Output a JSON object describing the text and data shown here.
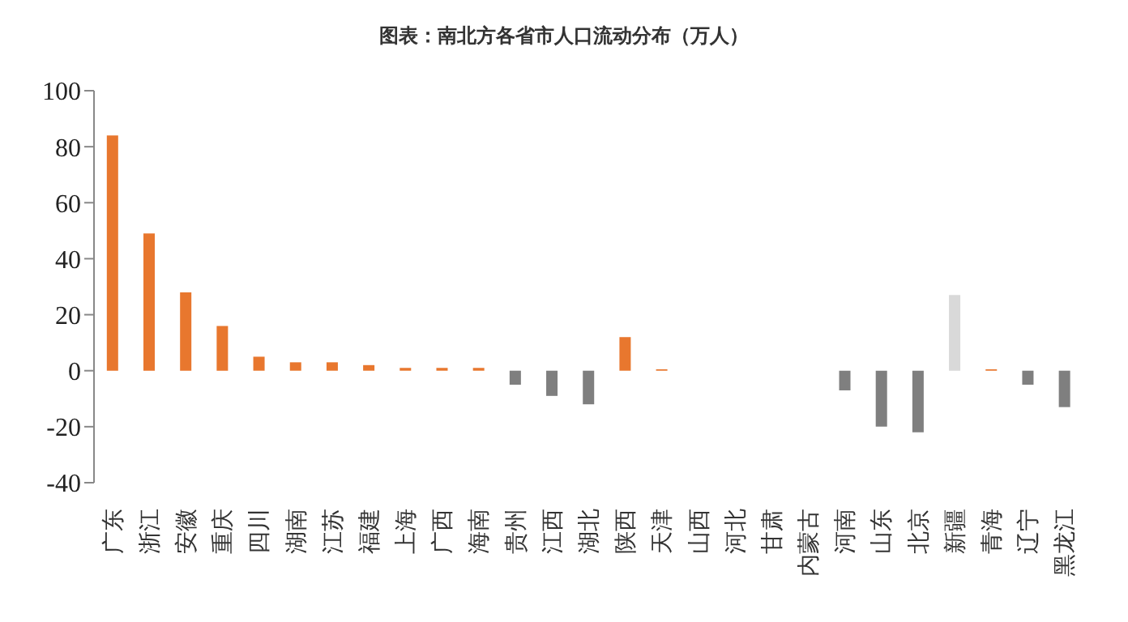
{
  "chart_data": {
    "type": "bar",
    "title": "图表：南北方各省市人口流动分布（万人）",
    "categories": [
      "广东",
      "浙江",
      "安徽",
      "重庆",
      "四川",
      "湖南",
      "江苏",
      "福建",
      "上海",
      "广西",
      "海南",
      "贵州",
      "江西",
      "湖北",
      "陕西",
      "天津",
      "山西",
      "河北",
      "甘肃",
      "内蒙古",
      "河南",
      "山东",
      "北京",
      "新疆",
      "青海",
      "辽宁",
      "黑龙江"
    ],
    "values": [
      84,
      49,
      28,
      16,
      5,
      3,
      3,
      2,
      1,
      1,
      1,
      -5,
      -9,
      -12,
      12,
      0.5,
      0,
      0,
      0,
      0,
      -7,
      -20,
      -22,
      27,
      0.5,
      -5,
      -13
    ],
    "colors": [
      "#e8772e",
      "#e8772e",
      "#e8772e",
      "#e8772e",
      "#e8772e",
      "#e8772e",
      "#e8772e",
      "#e8772e",
      "#e8772e",
      "#e8772e",
      "#e8772e",
      "#7f7f7f",
      "#7f7f7f",
      "#7f7f7f",
      "#e8772e",
      "#e8772e",
      "#7f7f7f",
      "#7f7f7f",
      "#7f7f7f",
      "#7f7f7f",
      "#7f7f7f",
      "#7f7f7f",
      "#7f7f7f",
      "#d9d9d9",
      "#e8772e",
      "#7f7f7f",
      "#7f7f7f"
    ],
    "ylim": [
      -40,
      100
    ],
    "yticks": [
      -40,
      -20,
      0,
      20,
      40,
      60,
      80,
      100
    ]
  }
}
